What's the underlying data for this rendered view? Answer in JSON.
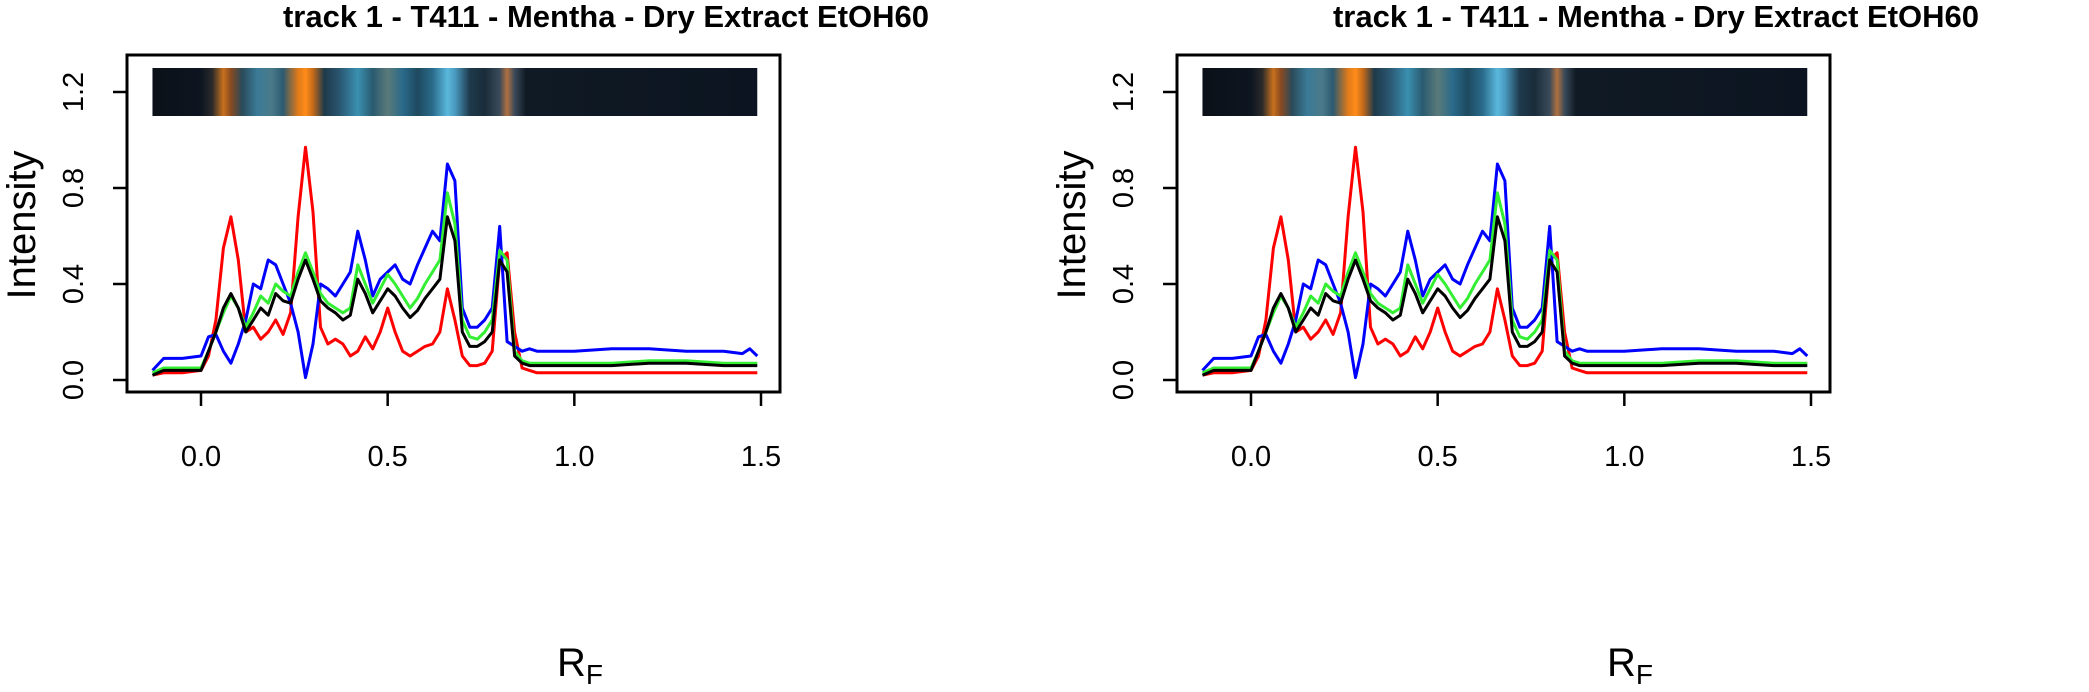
{
  "chart_data": [
    {
      "type": "line",
      "title": "track  1  - T411  - Mentha  - Dry Extract EtOH60",
      "xlabel": "R",
      "xlabel_sub": "F",
      "ylabel": "Intensity",
      "xlim": [
        -0.15,
        1.5
      ],
      "ylim": [
        0.0,
        1.3
      ],
      "xticks": [
        "0.0",
        "0.5",
        "1.0",
        "1.5"
      ],
      "yticks": [
        "0.0",
        "0.4",
        "0.8",
        "1.2"
      ],
      "grid": false,
      "legend": "none",
      "image_strip": {
        "y_range": [
          1.1,
          1.3
        ],
        "x_range": [
          -0.13,
          1.49
        ],
        "stops": [
          {
            "rf": -0.13,
            "color": "#0b1018"
          },
          {
            "rf": 0.0,
            "color": "#0d1520"
          },
          {
            "rf": 0.03,
            "color": "#2a2a2a"
          },
          {
            "rf": 0.06,
            "color": "#c8711e"
          },
          {
            "rf": 0.08,
            "color": "#8a4a20"
          },
          {
            "rf": 0.11,
            "color": "#2a4a5a"
          },
          {
            "rf": 0.15,
            "color": "#3a7a96"
          },
          {
            "rf": 0.19,
            "color": "#4a7a8a"
          },
          {
            "rf": 0.22,
            "color": "#2c5a70"
          },
          {
            "rf": 0.26,
            "color": "#e07a1a"
          },
          {
            "rf": 0.28,
            "color": "#ff8c1a"
          },
          {
            "rf": 0.3,
            "color": "#c46a1a"
          },
          {
            "rf": 0.33,
            "color": "#1e3a4a"
          },
          {
            "rf": 0.37,
            "color": "#2a5570"
          },
          {
            "rf": 0.42,
            "color": "#3a90b0"
          },
          {
            "rf": 0.46,
            "color": "#2a5a70"
          },
          {
            "rf": 0.5,
            "color": "#5a7a7a"
          },
          {
            "rf": 0.54,
            "color": "#2a6a8a"
          },
          {
            "rf": 0.58,
            "color": "#1e4a60"
          },
          {
            "rf": 0.62,
            "color": "#2a6a8a"
          },
          {
            "rf": 0.66,
            "color": "#5ab8dc"
          },
          {
            "rf": 0.68,
            "color": "#4a9ac0"
          },
          {
            "rf": 0.72,
            "color": "#1e3a4c"
          },
          {
            "rf": 0.76,
            "color": "#1a2c3a"
          },
          {
            "rf": 0.8,
            "color": "#3a4a5a"
          },
          {
            "rf": 0.82,
            "color": "#b07040"
          },
          {
            "rf": 0.84,
            "color": "#3a4a5a"
          },
          {
            "rf": 0.87,
            "color": "#101a24"
          },
          {
            "rf": 1.49,
            "color": "#0b1420"
          }
        ]
      },
      "x": [
        -0.13,
        -0.1,
        -0.05,
        0.0,
        0.02,
        0.04,
        0.06,
        0.08,
        0.1,
        0.12,
        0.14,
        0.16,
        0.18,
        0.2,
        0.22,
        0.24,
        0.26,
        0.28,
        0.3,
        0.32,
        0.34,
        0.36,
        0.38,
        0.4,
        0.42,
        0.44,
        0.46,
        0.48,
        0.5,
        0.52,
        0.54,
        0.56,
        0.58,
        0.6,
        0.62,
        0.64,
        0.66,
        0.68,
        0.7,
        0.72,
        0.74,
        0.76,
        0.78,
        0.8,
        0.82,
        0.84,
        0.86,
        0.88,
        0.9,
        1.0,
        1.1,
        1.2,
        1.3,
        1.4,
        1.45,
        1.47,
        1.49
      ],
      "series": [
        {
          "color": "#ff0000",
          "values": [
            0.02,
            0.03,
            0.03,
            0.04,
            0.1,
            0.25,
            0.55,
            0.68,
            0.5,
            0.2,
            0.22,
            0.17,
            0.2,
            0.25,
            0.19,
            0.28,
            0.68,
            0.97,
            0.7,
            0.22,
            0.15,
            0.17,
            0.15,
            0.1,
            0.12,
            0.18,
            0.13,
            0.2,
            0.3,
            0.2,
            0.12,
            0.1,
            0.12,
            0.14,
            0.15,
            0.2,
            0.38,
            0.25,
            0.1,
            0.06,
            0.06,
            0.07,
            0.12,
            0.5,
            0.53,
            0.2,
            0.05,
            0.04,
            0.03,
            0.03,
            0.03,
            0.03,
            0.03,
            0.03,
            0.03,
            0.03,
            0.03
          ]
        },
        {
          "color": "#0000ff",
          "values": [
            0.04,
            0.09,
            0.09,
            0.1,
            0.18,
            0.19,
            0.12,
            0.07,
            0.15,
            0.25,
            0.4,
            0.38,
            0.5,
            0.48,
            0.4,
            0.32,
            0.2,
            0.01,
            0.15,
            0.4,
            0.38,
            0.35,
            0.4,
            0.45,
            0.62,
            0.5,
            0.35,
            0.42,
            0.45,
            0.48,
            0.42,
            0.4,
            0.48,
            0.55,
            0.62,
            0.58,
            0.9,
            0.83,
            0.3,
            0.22,
            0.22,
            0.25,
            0.3,
            0.64,
            0.16,
            0.14,
            0.12,
            0.13,
            0.12,
            0.12,
            0.13,
            0.13,
            0.12,
            0.12,
            0.11,
            0.13,
            0.1
          ]
        },
        {
          "color": "#33ee33",
          "values": [
            0.03,
            0.05,
            0.05,
            0.05,
            0.12,
            0.2,
            0.28,
            0.35,
            0.3,
            0.22,
            0.28,
            0.35,
            0.32,
            0.4,
            0.37,
            0.35,
            0.45,
            0.53,
            0.45,
            0.36,
            0.32,
            0.3,
            0.28,
            0.3,
            0.48,
            0.4,
            0.32,
            0.38,
            0.44,
            0.4,
            0.35,
            0.3,
            0.34,
            0.4,
            0.45,
            0.5,
            0.78,
            0.65,
            0.25,
            0.18,
            0.17,
            0.2,
            0.25,
            0.54,
            0.5,
            0.12,
            0.08,
            0.07,
            0.07,
            0.07,
            0.07,
            0.08,
            0.08,
            0.07,
            0.07,
            0.07,
            0.07
          ]
        },
        {
          "color": "#000000",
          "values": [
            0.02,
            0.04,
            0.04,
            0.04,
            0.12,
            0.2,
            0.3,
            0.36,
            0.3,
            0.2,
            0.25,
            0.3,
            0.27,
            0.36,
            0.33,
            0.32,
            0.42,
            0.5,
            0.42,
            0.33,
            0.3,
            0.28,
            0.25,
            0.27,
            0.42,
            0.36,
            0.28,
            0.33,
            0.38,
            0.35,
            0.3,
            0.26,
            0.29,
            0.34,
            0.38,
            0.42,
            0.68,
            0.58,
            0.2,
            0.14,
            0.14,
            0.16,
            0.2,
            0.5,
            0.45,
            0.1,
            0.07,
            0.06,
            0.06,
            0.06,
            0.06,
            0.07,
            0.07,
            0.06,
            0.06,
            0.06,
            0.06
          ]
        }
      ]
    },
    {
      "type": "line",
      "title": "track  1  - T411  - Mentha  - Dry Extract EtOH60",
      "xlabel": "R",
      "xlabel_sub": "F",
      "ylabel": "Intensity",
      "xlim": [
        -0.15,
        1.5
      ],
      "ylim": [
        0.0,
        1.3
      ],
      "xticks": [
        "0.0",
        "0.5",
        "1.0",
        "1.5"
      ],
      "yticks": [
        "0.0",
        "0.4",
        "0.8",
        "1.2"
      ],
      "grid": false,
      "legend": "none",
      "image_strip": {
        "y_range": [
          1.1,
          1.3
        ],
        "x_range": [
          -0.13,
          1.49
        ],
        "stops": [
          {
            "rf": -0.13,
            "color": "#0b1018"
          },
          {
            "rf": 0.0,
            "color": "#0d1520"
          },
          {
            "rf": 0.03,
            "color": "#2a2a2a"
          },
          {
            "rf": 0.06,
            "color": "#c8711e"
          },
          {
            "rf": 0.08,
            "color": "#8a4a20"
          },
          {
            "rf": 0.11,
            "color": "#2a4a5a"
          },
          {
            "rf": 0.15,
            "color": "#3a7a96"
          },
          {
            "rf": 0.19,
            "color": "#4a7a8a"
          },
          {
            "rf": 0.22,
            "color": "#2c5a70"
          },
          {
            "rf": 0.26,
            "color": "#e07a1a"
          },
          {
            "rf": 0.28,
            "color": "#ff8c1a"
          },
          {
            "rf": 0.3,
            "color": "#c46a1a"
          },
          {
            "rf": 0.33,
            "color": "#1e3a4a"
          },
          {
            "rf": 0.37,
            "color": "#2a5570"
          },
          {
            "rf": 0.42,
            "color": "#3a90b0"
          },
          {
            "rf": 0.46,
            "color": "#2a5a70"
          },
          {
            "rf": 0.5,
            "color": "#5a7a7a"
          },
          {
            "rf": 0.54,
            "color": "#2a6a8a"
          },
          {
            "rf": 0.58,
            "color": "#1e4a60"
          },
          {
            "rf": 0.62,
            "color": "#2a6a8a"
          },
          {
            "rf": 0.66,
            "color": "#5ab8dc"
          },
          {
            "rf": 0.68,
            "color": "#4a9ac0"
          },
          {
            "rf": 0.72,
            "color": "#1e3a4c"
          },
          {
            "rf": 0.76,
            "color": "#1a2c3a"
          },
          {
            "rf": 0.8,
            "color": "#3a4a5a"
          },
          {
            "rf": 0.82,
            "color": "#b07040"
          },
          {
            "rf": 0.84,
            "color": "#3a4a5a"
          },
          {
            "rf": 0.87,
            "color": "#101a24"
          },
          {
            "rf": 1.49,
            "color": "#0b1420"
          }
        ]
      },
      "x": [
        -0.13,
        -0.1,
        -0.05,
        0.0,
        0.02,
        0.04,
        0.06,
        0.08,
        0.1,
        0.12,
        0.14,
        0.16,
        0.18,
        0.2,
        0.22,
        0.24,
        0.26,
        0.28,
        0.3,
        0.32,
        0.34,
        0.36,
        0.38,
        0.4,
        0.42,
        0.44,
        0.46,
        0.48,
        0.5,
        0.52,
        0.54,
        0.56,
        0.58,
        0.6,
        0.62,
        0.64,
        0.66,
        0.68,
        0.7,
        0.72,
        0.74,
        0.76,
        0.78,
        0.8,
        0.82,
        0.84,
        0.86,
        0.88,
        0.9,
        1.0,
        1.1,
        1.2,
        1.3,
        1.4,
        1.45,
        1.47,
        1.49
      ],
      "series": [
        {
          "color": "#ff0000",
          "values": [
            0.02,
            0.03,
            0.03,
            0.04,
            0.1,
            0.25,
            0.55,
            0.68,
            0.5,
            0.2,
            0.22,
            0.17,
            0.2,
            0.25,
            0.19,
            0.28,
            0.68,
            0.97,
            0.7,
            0.22,
            0.15,
            0.17,
            0.15,
            0.1,
            0.12,
            0.18,
            0.13,
            0.2,
            0.3,
            0.2,
            0.12,
            0.1,
            0.12,
            0.14,
            0.15,
            0.2,
            0.38,
            0.25,
            0.1,
            0.06,
            0.06,
            0.07,
            0.12,
            0.5,
            0.53,
            0.2,
            0.05,
            0.04,
            0.03,
            0.03,
            0.03,
            0.03,
            0.03,
            0.03,
            0.03,
            0.03,
            0.03
          ]
        },
        {
          "color": "#0000ff",
          "values": [
            0.04,
            0.09,
            0.09,
            0.1,
            0.18,
            0.19,
            0.12,
            0.07,
            0.15,
            0.25,
            0.4,
            0.38,
            0.5,
            0.48,
            0.4,
            0.32,
            0.2,
            0.01,
            0.15,
            0.4,
            0.38,
            0.35,
            0.4,
            0.45,
            0.62,
            0.5,
            0.35,
            0.42,
            0.45,
            0.48,
            0.42,
            0.4,
            0.48,
            0.55,
            0.62,
            0.58,
            0.9,
            0.83,
            0.3,
            0.22,
            0.22,
            0.25,
            0.3,
            0.64,
            0.16,
            0.14,
            0.12,
            0.13,
            0.12,
            0.12,
            0.13,
            0.13,
            0.12,
            0.12,
            0.11,
            0.13,
            0.1
          ]
        },
        {
          "color": "#33ee33",
          "values": [
            0.03,
            0.05,
            0.05,
            0.05,
            0.12,
            0.2,
            0.28,
            0.35,
            0.3,
            0.22,
            0.28,
            0.35,
            0.32,
            0.4,
            0.37,
            0.35,
            0.45,
            0.53,
            0.45,
            0.36,
            0.32,
            0.3,
            0.28,
            0.3,
            0.48,
            0.4,
            0.32,
            0.38,
            0.44,
            0.4,
            0.35,
            0.3,
            0.34,
            0.4,
            0.45,
            0.5,
            0.78,
            0.65,
            0.25,
            0.18,
            0.17,
            0.2,
            0.25,
            0.54,
            0.5,
            0.12,
            0.08,
            0.07,
            0.07,
            0.07,
            0.07,
            0.08,
            0.08,
            0.07,
            0.07,
            0.07,
            0.07
          ]
        },
        {
          "color": "#000000",
          "values": [
            0.02,
            0.04,
            0.04,
            0.04,
            0.12,
            0.2,
            0.3,
            0.36,
            0.3,
            0.2,
            0.25,
            0.3,
            0.27,
            0.36,
            0.33,
            0.32,
            0.42,
            0.5,
            0.42,
            0.33,
            0.3,
            0.28,
            0.25,
            0.27,
            0.42,
            0.36,
            0.28,
            0.33,
            0.38,
            0.35,
            0.3,
            0.26,
            0.29,
            0.34,
            0.38,
            0.42,
            0.68,
            0.58,
            0.2,
            0.14,
            0.14,
            0.16,
            0.2,
            0.5,
            0.45,
            0.1,
            0.07,
            0.06,
            0.06,
            0.06,
            0.06,
            0.07,
            0.07,
            0.06,
            0.06,
            0.06,
            0.06
          ]
        }
      ]
    }
  ]
}
